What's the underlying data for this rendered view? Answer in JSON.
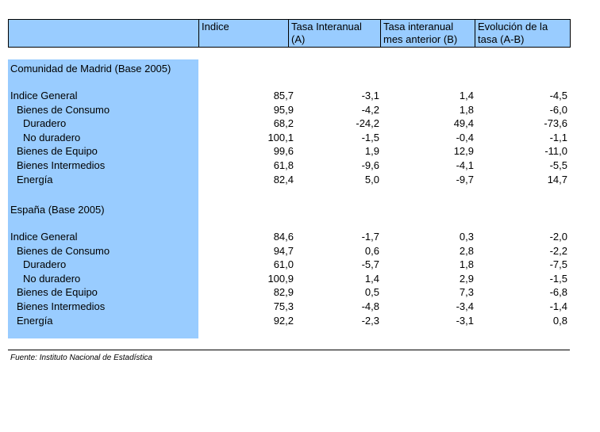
{
  "header": {
    "col0": "",
    "col1": "Indice",
    "col2": "Tasa Interanual (A)",
    "col3": "Tasa interanual mes anterior (B)",
    "col4": "Evolución de la tasa (A-B)"
  },
  "sections": [
    {
      "title": "Comunidad de Madrid (Base 2005)",
      "rows": [
        {
          "label": "Indice General",
          "indent": 0,
          "values": [
            "85,7",
            "-3,1",
            "1,4",
            "-4,5"
          ]
        },
        {
          "label": "Bienes de Consumo",
          "indent": 1,
          "values": [
            "95,9",
            "-4,2",
            "1,8",
            "-6,0"
          ]
        },
        {
          "label": "Duradero",
          "indent": 2,
          "values": [
            "68,2",
            "-24,2",
            "49,4",
            "-73,6"
          ]
        },
        {
          "label": "No duradero",
          "indent": 2,
          "values": [
            "100,1",
            "-1,5",
            "-0,4",
            "-1,1"
          ]
        },
        {
          "label": "Bienes de Equipo",
          "indent": 1,
          "values": [
            "99,6",
            "1,9",
            "12,9",
            "-11,0"
          ]
        },
        {
          "label": "Bienes Intermedios",
          "indent": 1,
          "values": [
            "61,8",
            "-9,6",
            "-4,1",
            "-5,5"
          ]
        },
        {
          "label": "Energía",
          "indent": 1,
          "values": [
            "82,4",
            "5,0",
            "-9,7",
            "14,7"
          ]
        }
      ]
    },
    {
      "title": "España (Base 2005)",
      "rows": [
        {
          "label": "Indice General",
          "indent": 0,
          "values": [
            "84,6",
            "-1,7",
            "0,3",
            "-2,0"
          ]
        },
        {
          "label": "Bienes de Consumo",
          "indent": 1,
          "values": [
            "94,7",
            "0,6",
            "2,8",
            "-2,2"
          ]
        },
        {
          "label": "Duradero",
          "indent": 2,
          "values": [
            "61,0",
            "-5,7",
            "1,8",
            "-7,5"
          ]
        },
        {
          "label": "No duradero",
          "indent": 2,
          "values": [
            "100,9",
            "1,4",
            "2,9",
            "-1,5"
          ]
        },
        {
          "label": "Bienes de Equipo",
          "indent": 1,
          "values": [
            "82,9",
            "0,5",
            "7,3",
            "-6,8"
          ]
        },
        {
          "label": "Bienes Intermedios",
          "indent": 1,
          "values": [
            "75,3",
            "-4,8",
            "-3,4",
            "-1,4"
          ]
        },
        {
          "label": "Energía",
          "indent": 1,
          "values": [
            "92,2",
            "-2,3",
            "-3,1",
            "0,8"
          ]
        }
      ]
    }
  ],
  "source": "Fuente: Instituto Nacional de Estadística"
}
